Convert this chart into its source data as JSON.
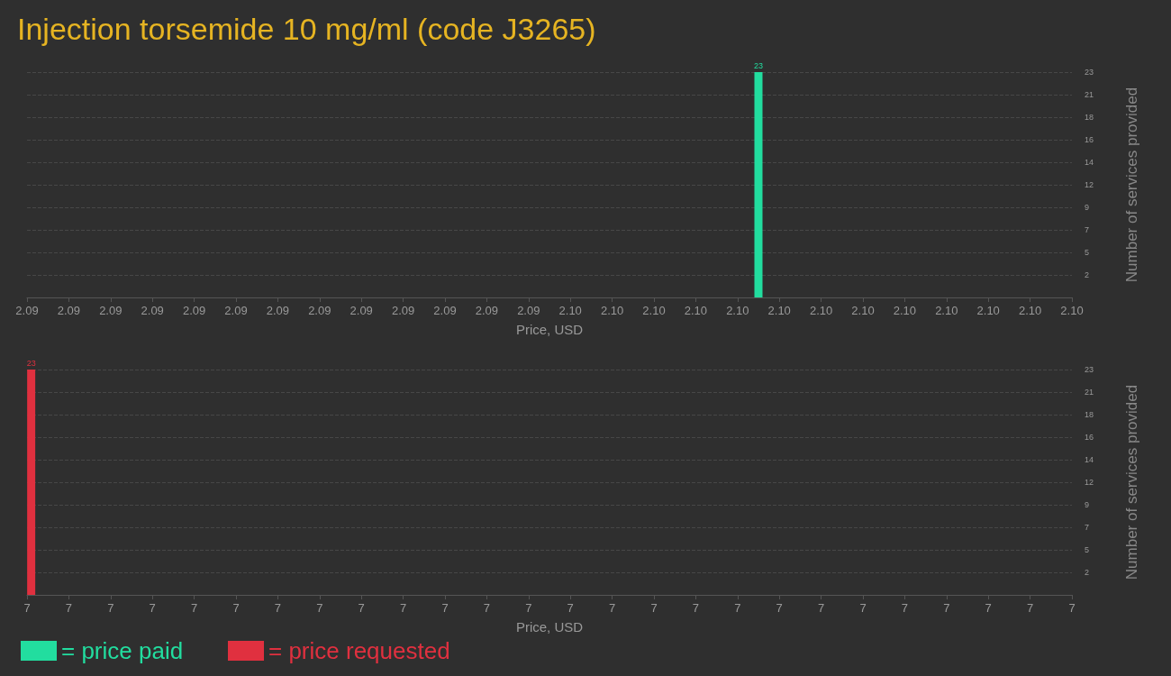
{
  "chart_data": [
    {
      "type": "bar",
      "title": "Injection torsemide 10 mg/ml (code J3265)",
      "xlabel": "Price, USD",
      "ylabel": "Number of services provided",
      "series": [
        {
          "name": "= price paid",
          "color": "#22dd9f",
          "x": [
            2.097
          ],
          "values": [
            23
          ]
        }
      ],
      "xlim": [
        2.09,
        2.1
      ],
      "xticks": [
        {
          "value": 2.09,
          "label": "2.09"
        },
        {
          "value": 2.0904,
          "label": "2.09"
        },
        {
          "value": 2.0908,
          "label": "2.09"
        },
        {
          "value": 2.0912,
          "label": "2.09"
        },
        {
          "value": 2.0916,
          "label": "2.09"
        },
        {
          "value": 2.092,
          "label": "2.09"
        },
        {
          "value": 2.0924,
          "label": "2.09"
        },
        {
          "value": 2.0928,
          "label": "2.09"
        },
        {
          "value": 2.0932,
          "label": "2.09"
        },
        {
          "value": 2.0936,
          "label": "2.09"
        },
        {
          "value": 2.094,
          "label": "2.09"
        },
        {
          "value": 2.0944,
          "label": "2.09"
        },
        {
          "value": 2.0948,
          "label": "2.09"
        },
        {
          "value": 2.0952,
          "label": "2.10"
        },
        {
          "value": 2.0956,
          "label": "2.10"
        },
        {
          "value": 2.096,
          "label": "2.10"
        },
        {
          "value": 2.0964,
          "label": "2.10"
        },
        {
          "value": 2.0968,
          "label": "2.10"
        },
        {
          "value": 2.0972,
          "label": "2.10"
        },
        {
          "value": 2.0976,
          "label": "2.10"
        },
        {
          "value": 2.098,
          "label": "2.10"
        },
        {
          "value": 2.0984,
          "label": "2.10"
        },
        {
          "value": 2.0988,
          "label": "2.10"
        },
        {
          "value": 2.0992,
          "label": "2.10"
        },
        {
          "value": 2.0996,
          "label": "2.10"
        },
        {
          "value": 2.1,
          "label": "2.10"
        }
      ],
      "ylim": [
        0,
        23
      ],
      "yticks": [
        {
          "value": 2.3,
          "label": "2"
        },
        {
          "value": 4.6,
          "label": "5"
        },
        {
          "value": 6.9,
          "label": "7"
        },
        {
          "value": 9.2,
          "label": "9"
        },
        {
          "value": 11.5,
          "label": "12"
        },
        {
          "value": 13.8,
          "label": "14"
        },
        {
          "value": 16.1,
          "label": "16"
        },
        {
          "value": 18.4,
          "label": "18"
        },
        {
          "value": 20.7,
          "label": "21"
        },
        23
      ],
      "grid": "y",
      "legend": "bottom left",
      "data_labels": true
    },
    {
      "type": "bar",
      "xlabel": "Price, USD",
      "ylabel": "Number of services provided",
      "series": [
        {
          "name": "= price requested",
          "color": "#e0303f",
          "x": [
            7.001
          ],
          "values": [
            23
          ]
        }
      ],
      "xlim": [
        7,
        7.25
      ],
      "xticks": [
        {
          "value": 7,
          "label": "7"
        },
        {
          "value": 7.01,
          "label": "7"
        },
        {
          "value": 7.02,
          "label": "7"
        },
        {
          "value": 7.03,
          "label": "7"
        },
        {
          "value": 7.04,
          "label": "7"
        },
        {
          "value": 7.05,
          "label": "7"
        },
        {
          "value": 7.06,
          "label": "7"
        },
        {
          "value": 7.07,
          "label": "7"
        },
        {
          "value": 7.08,
          "label": "7"
        },
        {
          "value": 7.09,
          "label": "7"
        },
        {
          "value": 7.1,
          "label": "7"
        },
        {
          "value": 7.11,
          "label": "7"
        },
        {
          "value": 7.12,
          "label": "7"
        },
        {
          "value": 7.13,
          "label": "7"
        },
        {
          "value": 7.14,
          "label": "7"
        },
        {
          "value": 7.15,
          "label": "7"
        },
        {
          "value": 7.16,
          "label": "7"
        },
        {
          "value": 7.17,
          "label": "7"
        },
        {
          "value": 7.18,
          "label": "7"
        },
        {
          "value": 7.19,
          "label": "7"
        },
        {
          "value": 7.2,
          "label": "7"
        },
        {
          "value": 7.21,
          "label": "7"
        },
        {
          "value": 7.22,
          "label": "7"
        },
        {
          "value": 7.23,
          "label": "7"
        },
        {
          "value": 7.24,
          "label": "7"
        },
        {
          "value": 7.25,
          "label": "7"
        }
      ],
      "ylim": [
        0,
        23
      ],
      "yticks": [
        {
          "value": 2.3,
          "label": "2"
        },
        {
          "value": 4.6,
          "label": "5"
        },
        {
          "value": 6.9,
          "label": "7"
        },
        {
          "value": 9.2,
          "label": "9"
        },
        {
          "value": 11.5,
          "label": "12"
        },
        {
          "value": 13.8,
          "label": "14"
        },
        {
          "value": 16.1,
          "label": "16"
        },
        {
          "value": 18.4,
          "label": "18"
        },
        {
          "value": 20.7,
          "label": "21"
        },
        23
      ],
      "grid": "y",
      "legend": "bottom left",
      "data_labels": true
    }
  ]
}
